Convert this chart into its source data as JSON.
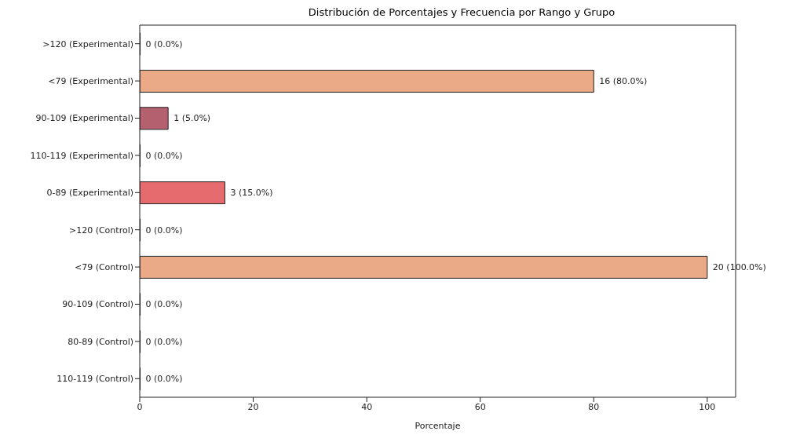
{
  "chart_data": {
    "type": "bar",
    "orientation": "horizontal",
    "title": "Distribución de Porcentajes y Frecuencia por Rango y Grupo",
    "xlabel": "Porcentaje",
    "categories": [
      ">120 (Experimental)",
      "<79 (Experimental)",
      "90-109 (Experimental)",
      "110-119 (Experimental)",
      "0-89 (Experimental)",
      ">120 (Control)",
      "<79 (Control)",
      "90-109 (Control)",
      "80-89 (Control)",
      "110-119 (Control)"
    ],
    "values": [
      0,
      80,
      5,
      0,
      15,
      0,
      100,
      0,
      0,
      0
    ],
    "colors": [
      "#eaaa88",
      "#eaaa88",
      "#b5606e",
      "#d98a8a",
      "#e66b6e",
      "#eaaa88",
      "#eaaa88",
      "#b5606e",
      "#e66b6e",
      "#d98a8a"
    ],
    "value_labels": [
      "0 (0.0%)",
      "16 (80.0%)",
      "1 (5.0%)",
      "0 (0.0%)",
      "3 (15.0%)",
      "0 (0.0%)",
      "20 (100.0%)",
      "0 (0.0%)",
      "0 (0.0%)",
      "0 (0.0%)"
    ],
    "xlim": [
      0,
      105
    ],
    "xticks": [
      0,
      20,
      40,
      60,
      80,
      100
    ],
    "grid": false,
    "legend": false
  }
}
